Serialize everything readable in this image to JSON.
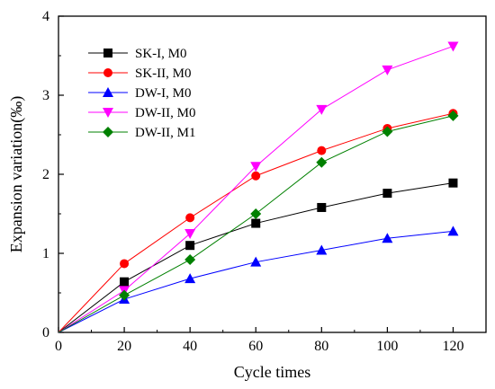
{
  "chart_data": {
    "type": "line",
    "title": "",
    "xlabel": "Cycle times",
    "ylabel": "Expansion variation(‰)",
    "xlim": [
      0,
      130
    ],
    "ylim": [
      0,
      4
    ],
    "xticks": [
      0,
      20,
      40,
      60,
      80,
      100,
      120
    ],
    "yticks": [
      0,
      1,
      2,
      3,
      4
    ],
    "grid": false,
    "legend_position": "top-left",
    "x": [
      0,
      20,
      40,
      60,
      80,
      100,
      120
    ],
    "series": [
      {
        "name": "SK-I, M0",
        "color": "#000000",
        "marker": "square",
        "values": [
          0,
          0.64,
          1.1,
          1.38,
          1.58,
          1.76,
          1.89
        ]
      },
      {
        "name": "SK-II, M0",
        "color": "#ff0000",
        "marker": "circle",
        "values": [
          0,
          0.87,
          1.45,
          1.98,
          2.3,
          2.58,
          2.77
        ]
      },
      {
        "name": "DW-I, M0",
        "color": "#0000ff",
        "marker": "triangle-up",
        "values": [
          0,
          0.42,
          0.68,
          0.89,
          1.04,
          1.19,
          1.28
        ]
      },
      {
        "name": "DW-II, M0",
        "color": "#ff00ff",
        "marker": "triangle-down",
        "values": [
          0,
          0.53,
          1.25,
          2.1,
          2.82,
          3.32,
          3.62
        ]
      },
      {
        "name": "DW-II, M1",
        "color": "#008000",
        "marker": "diamond",
        "values": [
          0,
          0.47,
          0.92,
          1.5,
          2.15,
          2.54,
          2.74
        ]
      }
    ]
  }
}
